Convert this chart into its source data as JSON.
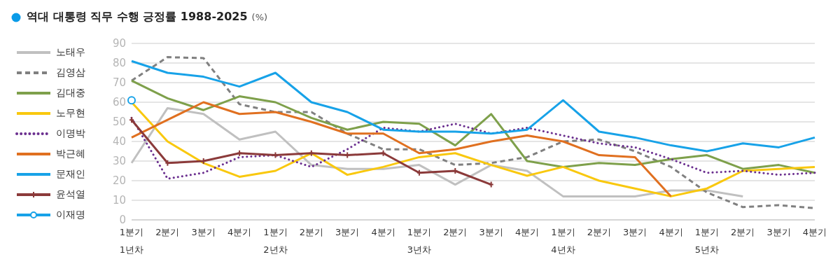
{
  "chart_data": {
    "type": "line",
    "title": "역대 대통령 직무 수행 긍정률 1988-2025",
    "ylabel": "(%)",
    "categories": [
      "1분기\n1년차",
      "2분기",
      "3분기",
      "4분기",
      "1분기\n2년차",
      "2분기",
      "3분기",
      "4분기",
      "1분기\n3년차",
      "2분기",
      "3분기",
      "4분기",
      "1분기\n4년차",
      "2분기",
      "3분기",
      "4분기",
      "1분기\n5년차",
      "2분기",
      "3분기",
      "4분기"
    ],
    "ylim": [
      0,
      90
    ],
    "yticks": [
      0,
      10,
      20,
      30,
      40,
      50,
      60,
      70,
      80,
      90
    ],
    "grid": "y",
    "legend": "left",
    "series": [
      {
        "name": "노태우",
        "color": "#c0c0c0",
        "line_style": "solid",
        "marker": "none",
        "values": [
          29,
          57,
          54,
          41,
          45,
          28,
          26,
          26,
          28,
          18,
          28,
          25,
          12,
          12,
          12,
          15,
          15,
          12,
          null,
          null
        ]
      },
      {
        "name": "김영삼",
        "color": "#808080",
        "line_style": "dashed",
        "marker": "none",
        "values": [
          71,
          83,
          82.5,
          59,
          55,
          55,
          44,
          36,
          36,
          28,
          29,
          32,
          40,
          41,
          35,
          27,
          14,
          6.5,
          7.5,
          6
        ]
      },
      {
        "name": "김대중",
        "color": "#7ea04b",
        "line_style": "solid",
        "marker": "none",
        "values": [
          71,
          62,
          56,
          63,
          60,
          52,
          46,
          50,
          49,
          38,
          54,
          30,
          27,
          29,
          28,
          31,
          33,
          26,
          28,
          24
        ]
      },
      {
        "name": "노무현",
        "color": "#f9c80e",
        "line_style": "solid",
        "marker": "none",
        "values": [
          60,
          40,
          29,
          22,
          25,
          34,
          23,
          27,
          32,
          34,
          28,
          22.5,
          27,
          20,
          16,
          12,
          16,
          25,
          26,
          27
        ]
      },
      {
        "name": "이명박",
        "color": "#6b2f8f",
        "line_style": "dotted",
        "marker": "none",
        "values": [
          52,
          21,
          24,
          32,
          33,
          27,
          36,
          47,
          45,
          49,
          44,
          47,
          43,
          39,
          37,
          31,
          24,
          25,
          23,
          24
        ]
      },
      {
        "name": "박근혜",
        "color": "#e07020",
        "line_style": "solid",
        "marker": "none",
        "values": [
          42,
          51,
          60,
          54,
          55,
          50,
          44,
          44,
          34,
          36,
          40,
          43,
          40,
          33,
          32,
          12,
          null,
          null,
          null,
          null
        ]
      },
      {
        "name": "문재인",
        "color": "#17a2e8",
        "line_style": "solid",
        "marker": "none",
        "values": [
          81,
          75,
          73,
          68,
          75,
          60,
          55,
          46,
          45,
          45,
          44,
          46,
          61,
          45,
          42,
          38,
          35,
          39,
          37,
          42
        ]
      },
      {
        "name": "윤석열",
        "color": "#8b3a3a",
        "line_style": "solid",
        "marker": "cross",
        "values": [
          51,
          29,
          30,
          34,
          33,
          34,
          33,
          34,
          24,
          25,
          18,
          null,
          null,
          null,
          null,
          null,
          null,
          null,
          null,
          null
        ]
      },
      {
        "name": "이재명",
        "color": "#17a2e8",
        "line_style": "solid",
        "marker": "circle",
        "values": [
          61,
          null,
          null,
          null,
          null,
          null,
          null,
          null,
          null,
          null,
          null,
          null,
          null,
          null,
          null,
          null,
          null,
          null,
          null,
          null
        ]
      }
    ]
  }
}
